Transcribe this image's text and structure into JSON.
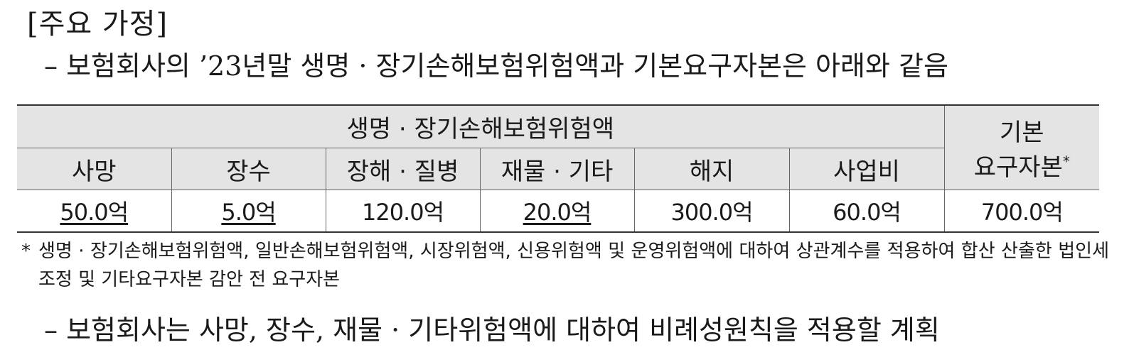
{
  "section_title": "[주요 가정]",
  "bullet1": "– 보험회사의 ’23년말 생명 · 장기손해보험위험액과 기본요구자본은 아래와 같음",
  "table": {
    "group_header": "생명 · 장기손해보험위험액",
    "basic_header_line1": "기본",
    "basic_header_line2": "요구자본",
    "basic_header_mark": "*",
    "columns": [
      "사망",
      "장수",
      "장해 · 질병",
      "재물 · 기타",
      "해지",
      "사업비"
    ],
    "values": [
      "50.0억",
      "5.0억",
      "120.0억",
      "20.0억",
      "300.0억",
      "60.0억"
    ],
    "basic_value": "700.0억"
  },
  "footnote": {
    "mark": "*",
    "text": "생명 · 장기손해보험위험액, 일반손해보험위험액, 시장위험액, 신용위험액 및 운영위험액에 대하여 상관계수를 적용하여 합산 산출한 법인세조정 및 기타요구자본 감안 전 요구자본"
  },
  "bullet2": "– 보험회사는 사망, 장수, 재물 · 기타위험액에 대하여 비례성원칙을 적용할 계획"
}
